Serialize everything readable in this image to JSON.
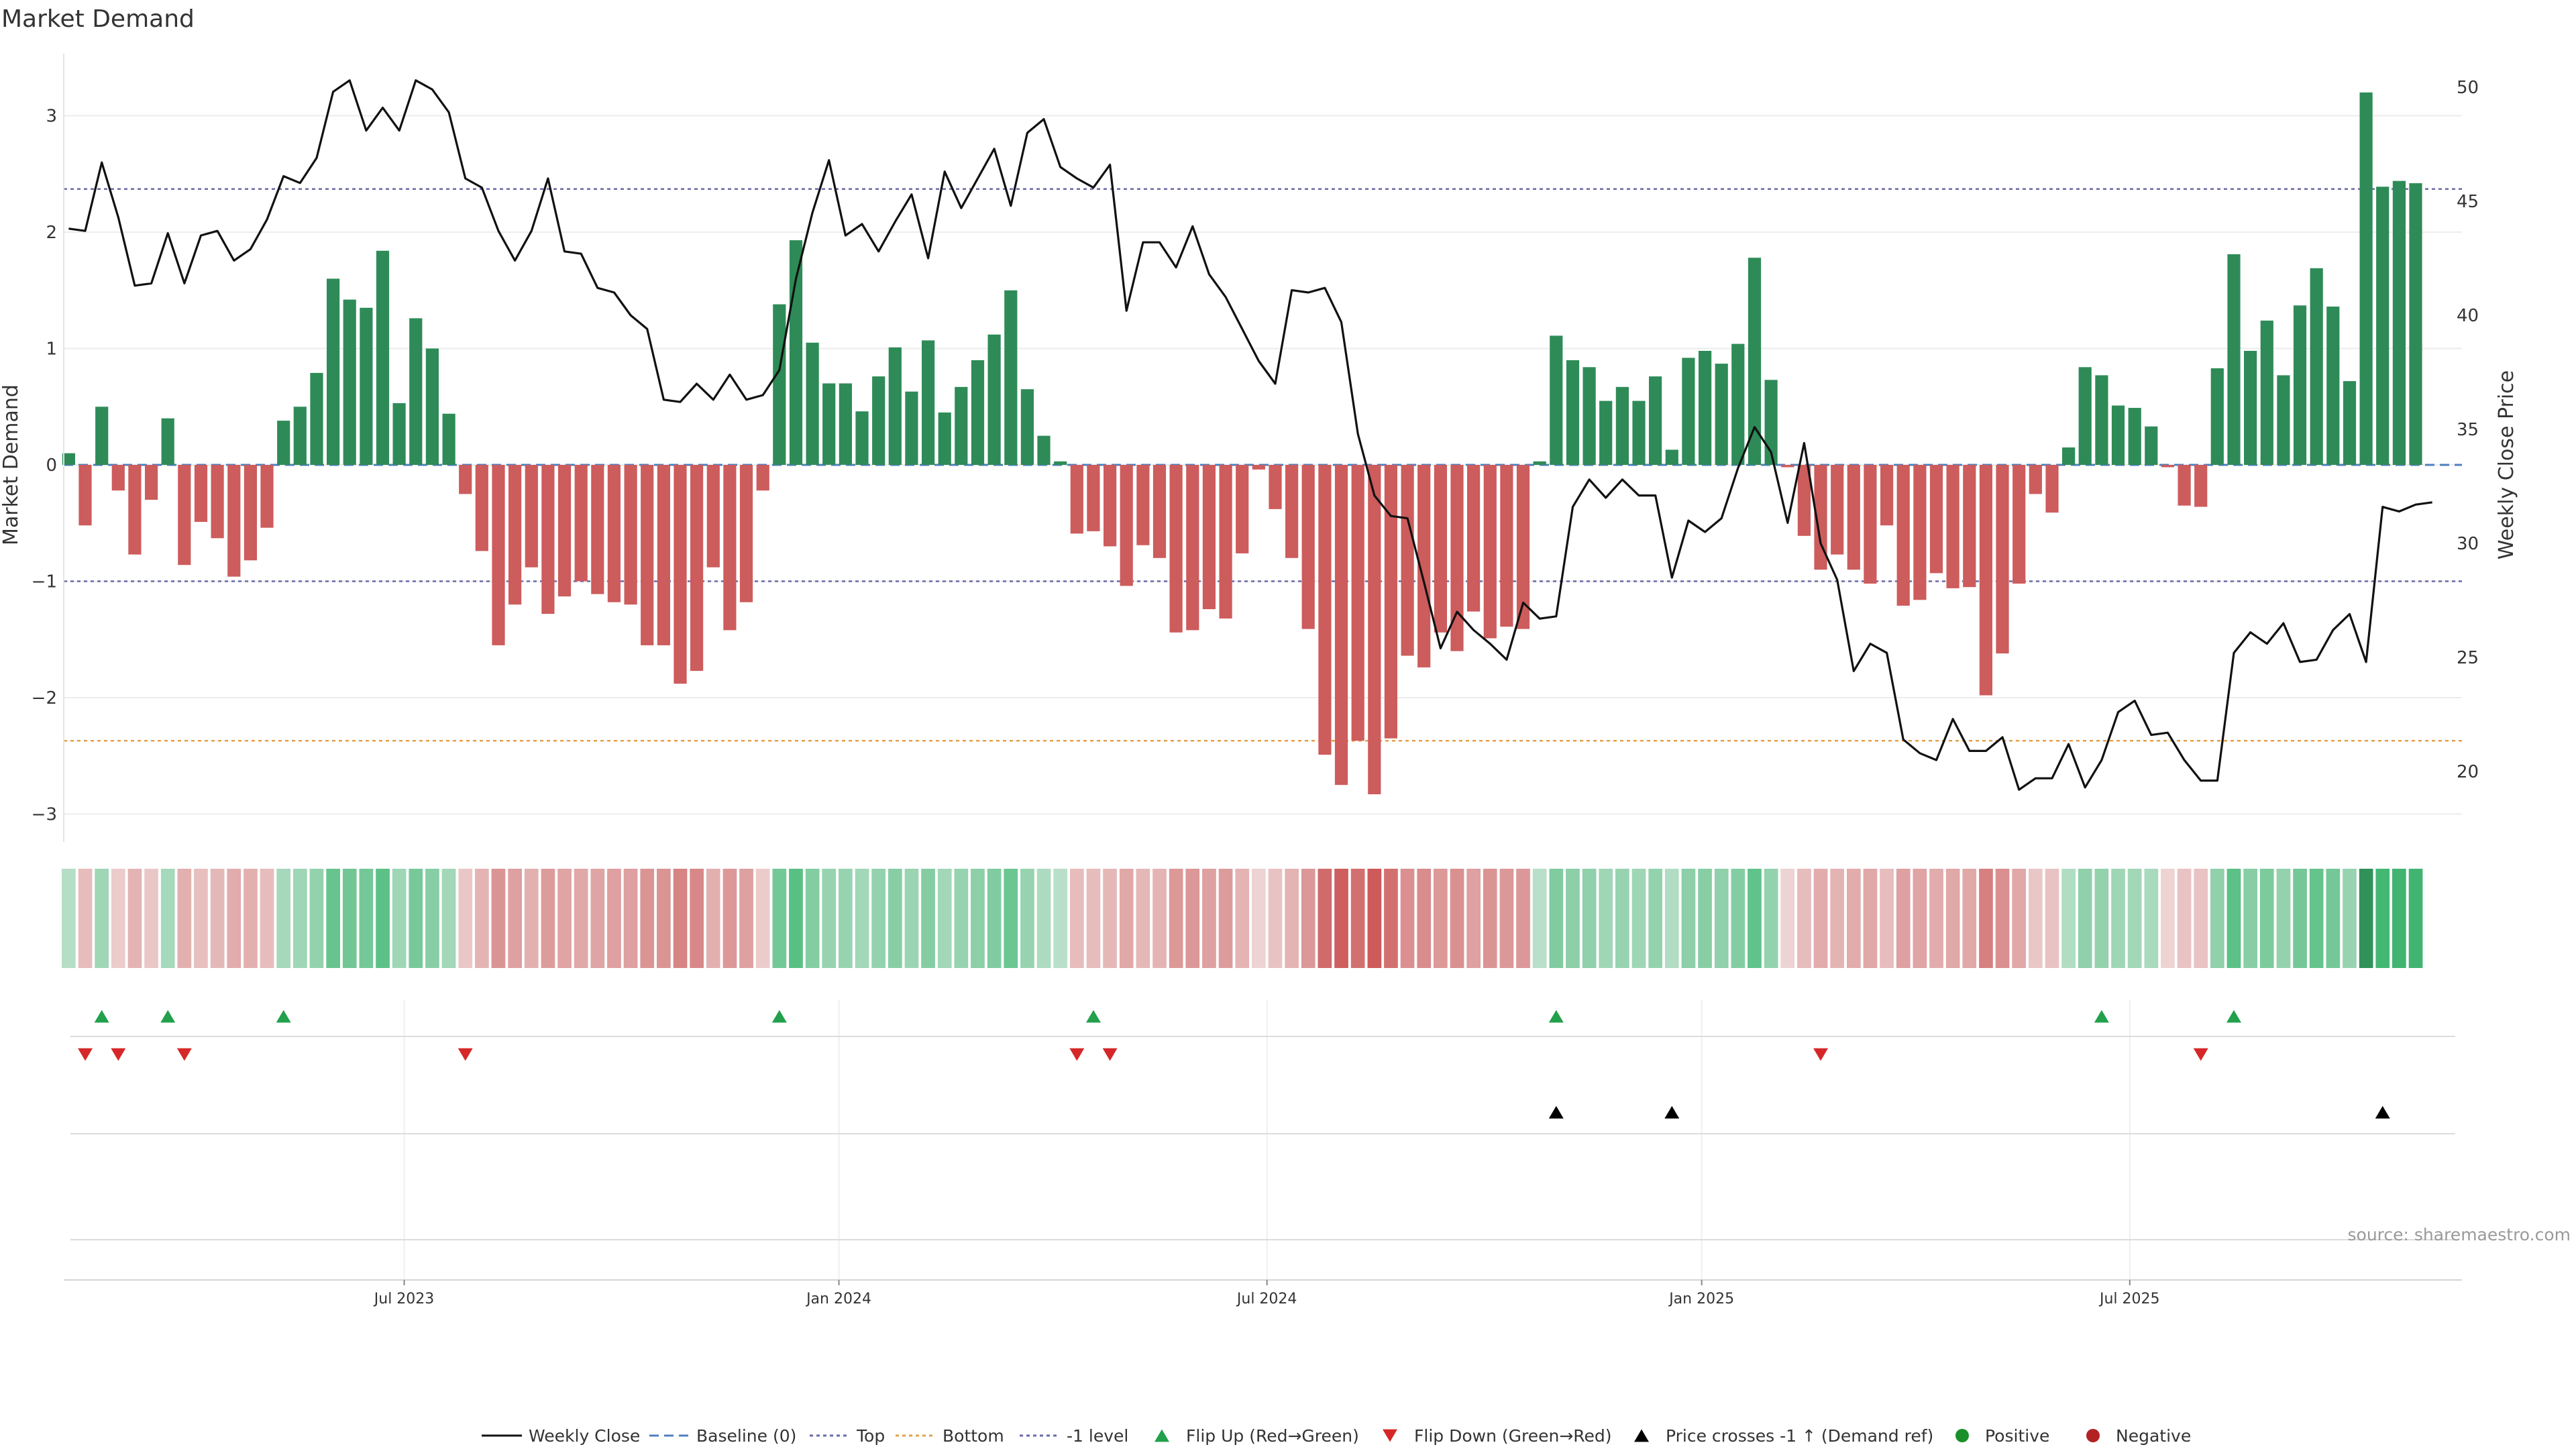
{
  "colors": {
    "positive": "#2e8b57",
    "negative": "#cd5c5c",
    "price": "#111111",
    "top": "#6a6aa8",
    "bottom": "#e6a04a",
    "minus_one": "#6a6aa8",
    "baseline": "#4f7fbf",
    "flip_up": "#22a04b",
    "flip_down": "#d62728",
    "cross": "#000000",
    "pos_dot": "#1a8f2a",
    "neg_dot": "#b22222"
  },
  "chart_data": {
    "type": "bar",
    "title": "Market Demand",
    "ylabel": "Market Demand",
    "ylim": [
      -3.3,
      3.5
    ],
    "yticks": [
      3,
      2,
      1,
      0,
      -1,
      -2,
      -3
    ],
    "ytick_labels": [
      "3",
      "2",
      "1",
      "0",
      "−1",
      "−2",
      "−3"
    ],
    "y2label": "Weekly Close Price",
    "y2lim": [
      17.5,
      52
    ],
    "y2ticks": [
      50,
      45,
      40,
      35,
      30,
      25,
      20
    ],
    "x_start_week": -9.3,
    "x_end_week": 135.8,
    "xtick_labels": [
      "Jul 2023",
      "Jan 2024",
      "Jul 2024",
      "Jan 2025",
      "Jul 2025"
    ],
    "xtick_weeks": [
      11.3,
      37.6,
      63.5,
      89.8,
      115.7
    ],
    "levels": {
      "top": 2.37,
      "bottom": -2.37,
      "minus_one": -1.0
    },
    "series": [
      {
        "name": "Market Demand",
        "start_week": -9,
        "values": [
          0.1,
          -0.52,
          0.5,
          -0.22,
          -0.77,
          -0.3,
          0.4,
          -0.86,
          -0.49,
          -0.63,
          -0.96,
          -0.82,
          -0.54,
          0.38,
          0.5,
          0.79,
          1.6,
          1.42,
          1.35,
          1.84,
          0.53,
          1.26,
          1.0,
          0.44,
          -0.25,
          -0.74,
          -1.55,
          -1.2,
          -0.88,
          -1.28,
          -1.13,
          -1.0,
          -1.11,
          -1.18,
          -1.2,
          -1.55,
          -1.55,
          -1.88,
          -1.77,
          -0.88,
          -1.42,
          -1.18,
          -0.22,
          1.38,
          1.93,
          1.05,
          0.7,
          0.7,
          0.46,
          0.76,
          1.01,
          0.63,
          1.07,
          0.45,
          0.67,
          0.9,
          1.12,
          1.5,
          0.65,
          0.25,
          0.03,
          -0.59,
          -0.57,
          -0.7,
          -1.04,
          -0.69,
          -0.8,
          -1.44,
          -1.42,
          -1.24,
          -1.32,
          -0.76,
          -0.04,
          -0.38,
          -0.8,
          -1.41,
          -2.49,
          -2.75,
          -2.37,
          -2.83,
          -2.35,
          -1.64,
          -1.74,
          -1.44,
          -1.6,
          -1.26,
          -1.49,
          -1.39,
          -1.41,
          0.03,
          1.11,
          0.9,
          0.84,
          0.55,
          0.67,
          0.55,
          0.76,
          0.13,
          0.92,
          0.98,
          0.87,
          1.04,
          1.78,
          0.73,
          -0.02,
          -0.61,
          -0.9,
          -0.77,
          -0.9,
          -1.02,
          -0.52,
          -1.21,
          -1.16,
          -0.93,
          -1.06,
          -1.05,
          -1.98,
          -1.62,
          -1.02,
          -0.25,
          -0.41,
          0.15,
          0.84,
          0.77,
          0.51,
          0.49,
          0.33,
          -0.02,
          -0.35,
          -0.36,
          0.83,
          1.81,
          0.98,
          1.24,
          0.77,
          1.37,
          1.69,
          1.36,
          0.72,
          3.2,
          2.39,
          2.44,
          2.42
        ]
      },
      {
        "name": "Weekly Close",
        "start_week": -9,
        "values": [
          43.8,
          43.7,
          46.7,
          44.3,
          41.3,
          41.4,
          43.6,
          41.4,
          43.5,
          43.7,
          42.4,
          42.9,
          44.2,
          46.1,
          45.8,
          46.9,
          49.8,
          50.3,
          48.1,
          49.1,
          48.1,
          50.3,
          49.9,
          48.9,
          46.0,
          45.6,
          43.7,
          42.4,
          43.7,
          46.0,
          42.8,
          42.7,
          41.2,
          41.0,
          40.0,
          39.4,
          36.3,
          36.2,
          37.0,
          36.3,
          37.4,
          36.3,
          36.5,
          37.6,
          41.6,
          44.5,
          46.8,
          43.5,
          44.0,
          42.8,
          44.1,
          45.3,
          42.5,
          46.3,
          44.7,
          46.0,
          47.3,
          44.8,
          48.0,
          48.6,
          46.5,
          46.0,
          45.6,
          46.6,
          40.2,
          43.2,
          43.2,
          42.1,
          43.9,
          41.8,
          40.8,
          39.4,
          38.0,
          37.0,
          41.1,
          41.0,
          41.2,
          39.7,
          34.8,
          32.1,
          31.2,
          31.1,
          28.3,
          25.4,
          27.0,
          26.2,
          25.6,
          24.9,
          27.4,
          26.7,
          26.8,
          31.6,
          32.8,
          32.0,
          32.8,
          32.1,
          32.1,
          28.5,
          31.0,
          30.5,
          31.1,
          33.3,
          35.1,
          34.0,
          30.9,
          34.4,
          30.0,
          28.4,
          24.4,
          25.6,
          25.2,
          21.4,
          20.8,
          20.5,
          22.3,
          20.9,
          20.9,
          21.5,
          19.2,
          19.7,
          19.7,
          21.2,
          19.3,
          20.5,
          22.6,
          23.1,
          21.6,
          21.7,
          20.5,
          19.6,
          19.6,
          25.2,
          26.1,
          25.6,
          26.5,
          24.8,
          24.9,
          26.2,
          26.9,
          24.8,
          31.6,
          31.4,
          31.7,
          31.8
        ]
      }
    ],
    "tile_intensity": [
      0.1,
      -0.52,
      0.5,
      -0.22,
      -0.77,
      -0.3,
      0.4,
      -0.86,
      -0.49,
      -0.63,
      -0.96,
      -0.82,
      -0.54,
      0.38,
      0.5,
      0.79,
      1.6,
      1.42,
      1.35,
      1.84,
      0.53,
      1.26,
      1.0,
      0.44,
      -0.25,
      -0.74,
      -1.55,
      -1.2,
      -0.88,
      -1.28,
      -1.13,
      -1.0,
      -1.11,
      -1.18,
      -1.2,
      -1.55,
      -1.55,
      -1.88,
      -1.77,
      -0.88,
      -1.42,
      -1.18,
      -0.22,
      1.38,
      1.93,
      1.05,
      0.7,
      0.7,
      0.46,
      0.76,
      1.01,
      0.63,
      1.07,
      0.45,
      0.67,
      0.9,
      1.12,
      1.5,
      0.65,
      0.25,
      0.03,
      -0.59,
      -0.57,
      -0.7,
      -1.04,
      -0.69,
      -0.8,
      -1.44,
      -1.42,
      -1.24,
      -1.32,
      -0.76,
      -0.04,
      -0.38,
      -0.8,
      -1.41,
      -2.49,
      -2.75,
      -2.37,
      -2.83,
      -2.35,
      -1.64,
      -1.74,
      -1.44,
      -1.6,
      -1.26,
      -1.49,
      -1.39,
      -1.41,
      0.03,
      1.11,
      0.9,
      0.84,
      0.55,
      0.67,
      0.55,
      0.76,
      0.13,
      0.92,
      0.98,
      0.87,
      1.04,
      1.78,
      0.73,
      -0.02,
      -0.61,
      -0.9,
      -0.77,
      -0.9,
      -1.02,
      -0.52,
      -1.21,
      -1.16,
      -0.93,
      -1.06,
      -1.05,
      -1.98,
      -1.62,
      -1.02,
      -0.25,
      -0.41,
      0.15,
      0.84,
      0.77,
      0.51,
      0.49,
      0.33,
      -0.02,
      -0.35,
      -0.36,
      0.83,
      1.81,
      0.98,
      1.24,
      0.77,
      1.37,
      1.69,
      1.36,
      0.72,
      3.2,
      2.39,
      2.44,
      2.42
    ],
    "events": {
      "flip_up_weeks": [
        -7,
        -3,
        4,
        34,
        53,
        81,
        114,
        122
      ],
      "flip_down_weeks": [
        -8,
        -6,
        -2,
        15,
        52,
        54,
        97,
        120
      ],
      "price_cross_weeks": [
        81,
        88,
        131
      ]
    },
    "legend": [
      {
        "key": "weekly_close",
        "label": "Weekly Close"
      },
      {
        "key": "baseline",
        "label": "Baseline (0)"
      },
      {
        "key": "top",
        "label": "Top"
      },
      {
        "key": "bottom",
        "label": "Bottom"
      },
      {
        "key": "minus_one",
        "label": "-1 level"
      },
      {
        "key": "flip_up",
        "label": "Flip Up (Red→Green)"
      },
      {
        "key": "flip_down",
        "label": "Flip Down (Green→Red)"
      },
      {
        "key": "cross",
        "label": "Price crosses -1 ↑ (Demand ref)"
      },
      {
        "key": "positive",
        "label": "Positive"
      },
      {
        "key": "negative",
        "label": "Negative"
      }
    ],
    "source": "source: sharemaestro.com"
  }
}
